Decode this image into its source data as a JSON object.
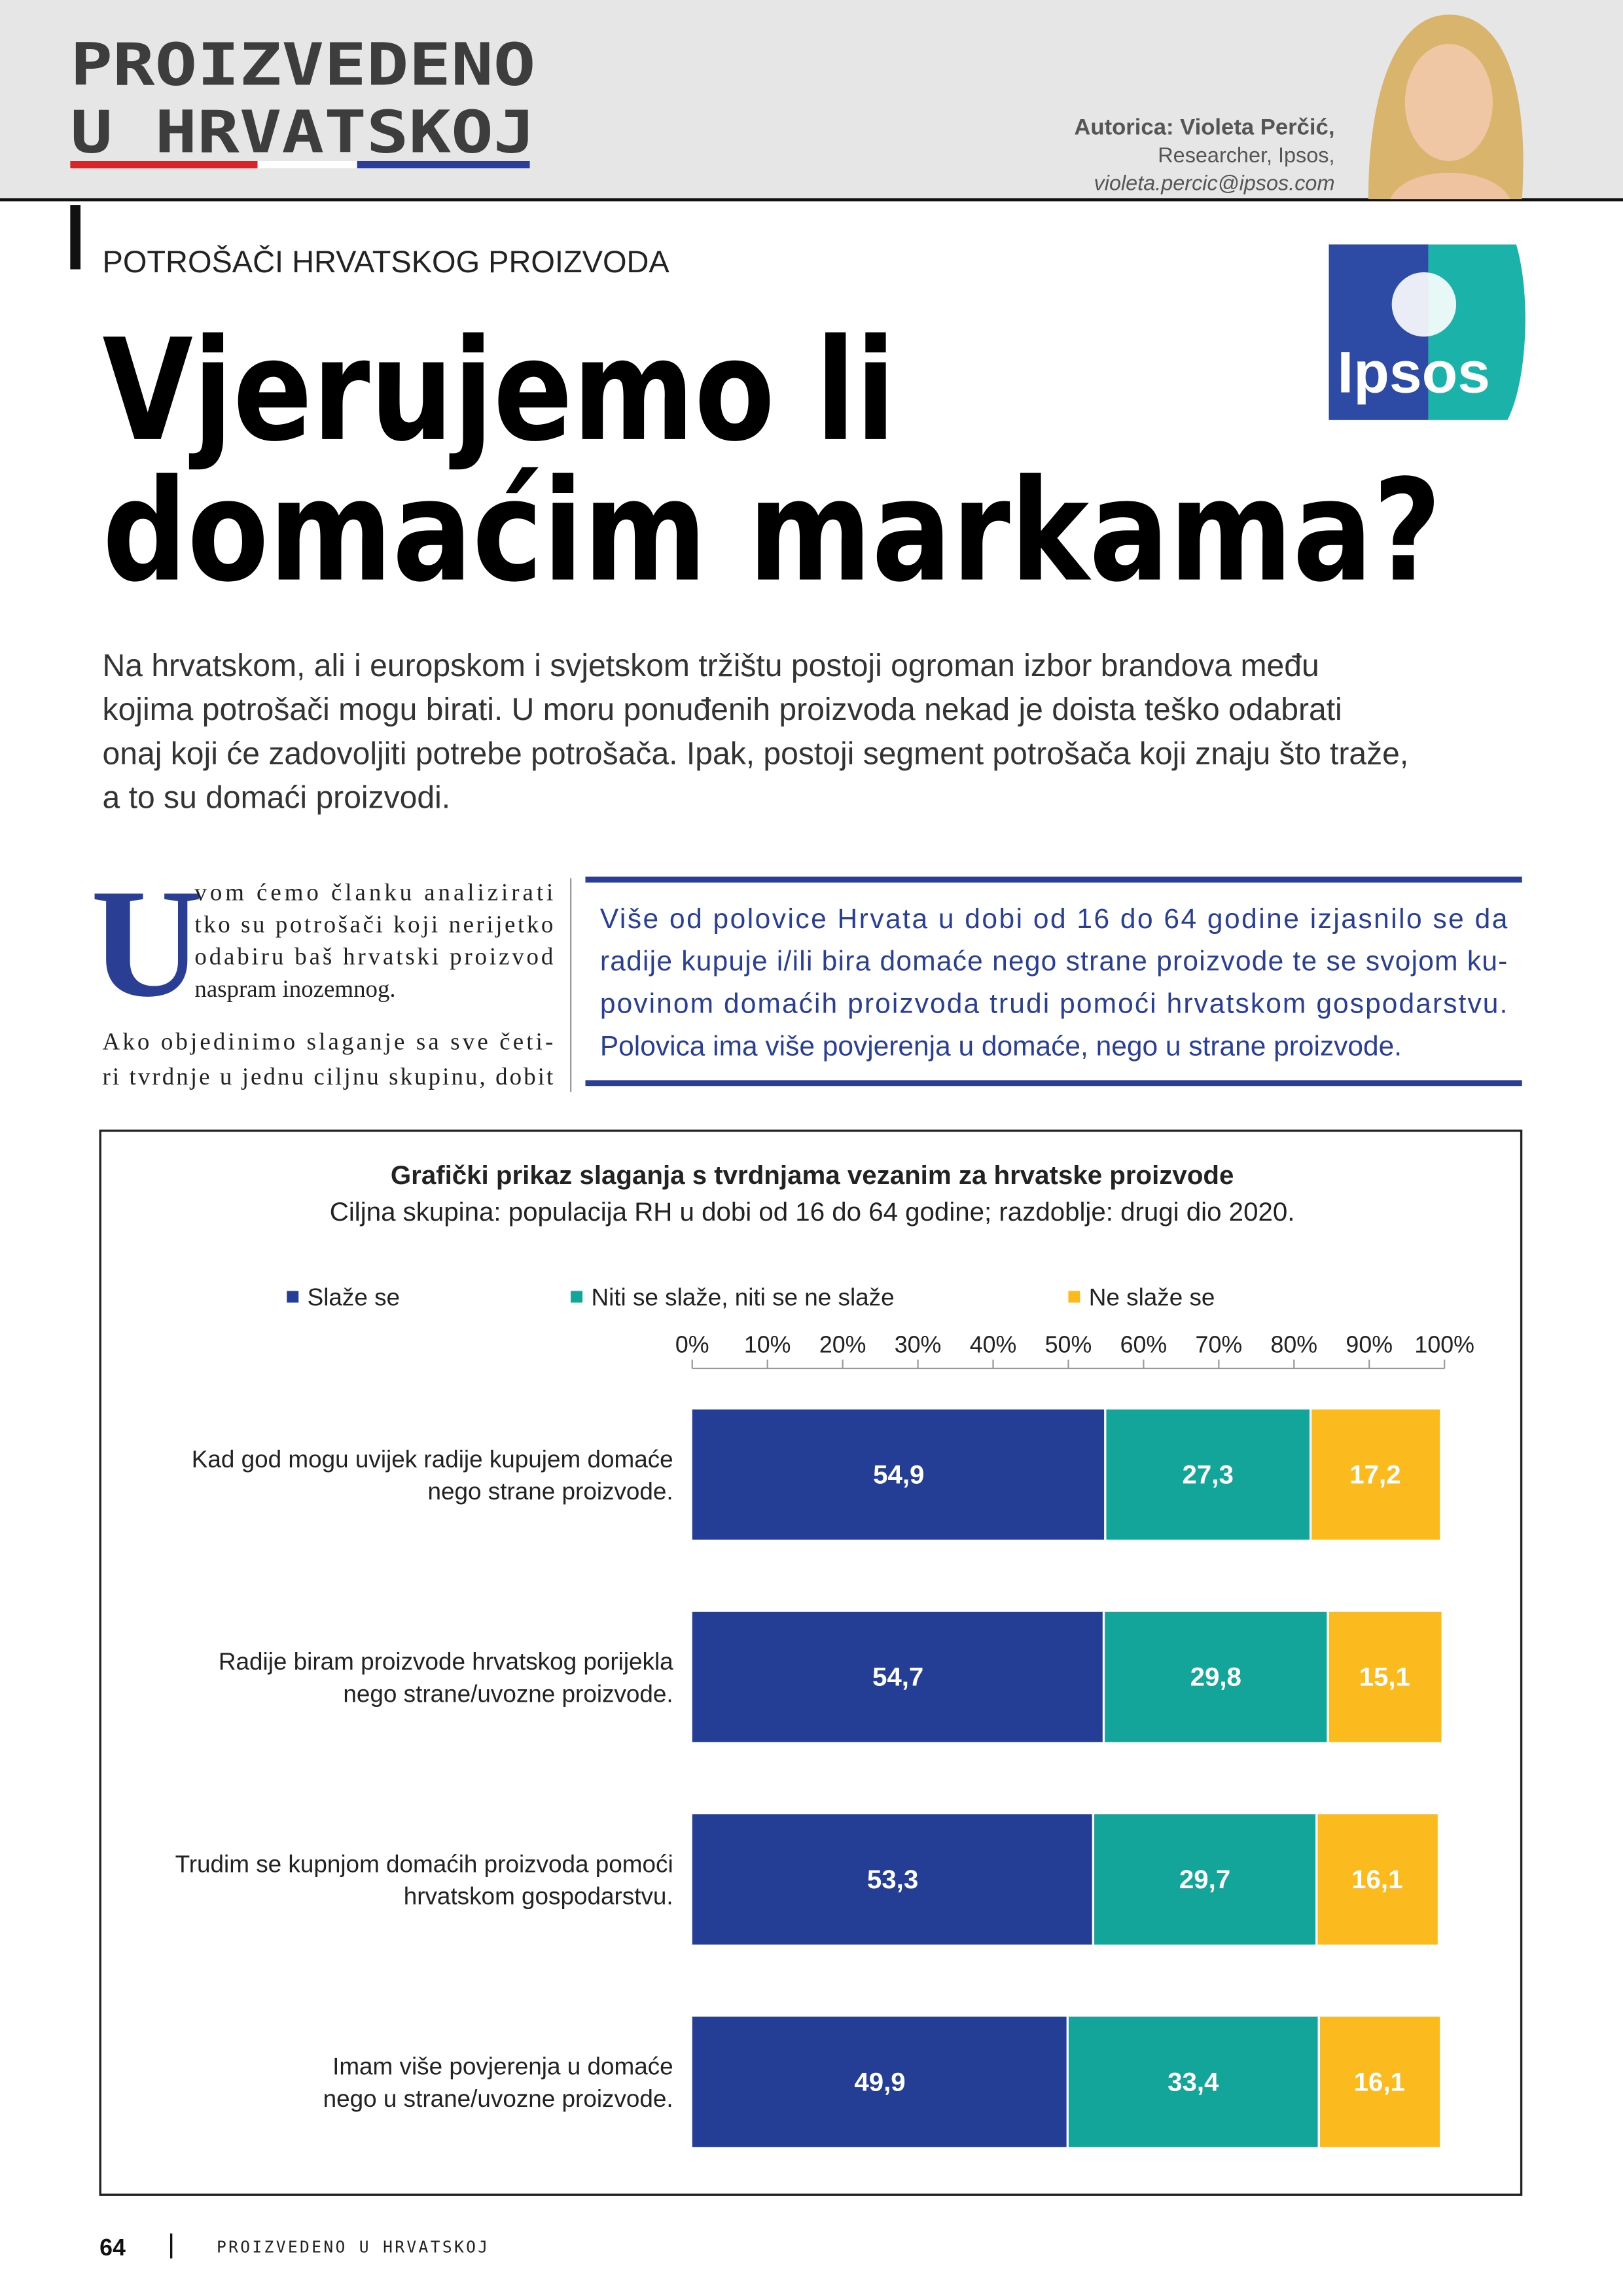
{
  "header": {
    "magazine_line1": "PROIZVEDENO",
    "magazine_line2": "U HRVATSKOJ",
    "author": "Autorica: Violeta Perčić,",
    "author_role": "Researcher, Ipsos,",
    "author_email": "violeta.percic@ipsos.com",
    "logo": "Ipsos"
  },
  "article": {
    "section": "POTROŠAČI HRVATSKOG PROIZVODA",
    "title": [
      "Vjerujemo li",
      "domaćim markama?"
    ],
    "lead": [
      "Na hrvatskom, ali i europskom i svjetskom tržištu postoji ogroman izbor brandova među",
      "kojima potrošači mogu birati. U moru ponuđenih proizvoda nekad je doista teško odabrati",
      "onaj koji će zadovoljiti potrebe potrošača. Ipak, postoji segment potrošača koji znaju što traže,",
      "a to su domaći proizvodi."
    ],
    "drop_cap": "U",
    "body": [
      "vom ćemo članku analizirati",
      "tko su potrošači koji nerijetko",
      "odabiru baš hrvatski proizvod",
      "naspram inozemnog.",
      "Ako objedinimo slaganje sa sve četi-",
      "ri tvrdnje u jednu ciljnu skupinu, dobit"
    ],
    "quote": [
      "Više od polovice Hrvata u dobi od 16 do 64 godine izjasnilo se da",
      "radije kupuje i/ili bira domaće nego strane proizvode te se svojom ku-",
      "povinom domaćih proizvoda trudi pomoći hrvatskom gospodarstvu.",
      "Polovica ima više povjerenja u domaće, nego u strane proizvode."
    ]
  },
  "chart_data": {
    "type": "bar",
    "orientation": "horizontal",
    "stacked": true,
    "title": "Grafički prikaz slaganja s tvrdnjama vezanim za hrvatske proizvode",
    "subtitle": "Ciljna skupina: populacija RH u dobi od 16 do 64 godine; razdoblje: drugi dio 2020.",
    "categories": [
      "Kad god mogu uvijek radije kupujem domaće nego strane proizvode.",
      "Radije biram proizvode hrvatskog porijekla nego strane/uvozne proizvode.",
      "Trudim se kupnjom domaćih proizvoda pomoći hrvatskom gospodarstvu.",
      "Imam više povjerenja u domaće nego u strane/uvozne proizvode."
    ],
    "series": [
      {
        "name": "Slaže se",
        "color": "#233e94",
        "values": [
          54.9,
          54.7,
          53.3,
          49.9
        ],
        "value_labels": [
          "54,9",
          "54,7",
          "53,3",
          "49,9"
        ]
      },
      {
        "name": "Niti se slaže, niti se ne slaže",
        "color": "#14a59a",
        "values": [
          27.3,
          29.8,
          29.7,
          33.4
        ],
        "value_labels": [
          "27,3",
          "29,8",
          "29,7",
          "33,4"
        ]
      },
      {
        "name": "Ne slaže se",
        "color": "#fbbb1f",
        "values": [
          17.2,
          15.1,
          16.1,
          16.1
        ],
        "value_labels": [
          "17,2",
          "15,1",
          "16,1",
          "16,1"
        ]
      }
    ],
    "xlim": [
      0,
      100
    ],
    "xticks": [
      {
        "value": 0,
        "label": "0%"
      },
      {
        "value": 10,
        "label": "10%"
      },
      {
        "value": 20,
        "label": "20%"
      },
      {
        "value": 30,
        "label": "30%"
      },
      {
        "value": 40,
        "label": "40%"
      },
      {
        "value": 50,
        "label": "50%"
      },
      {
        "value": 60,
        "label": "60%"
      },
      {
        "value": 70,
        "label": "70%"
      },
      {
        "value": 80,
        "label": "80%"
      },
      {
        "value": 90,
        "label": "90%"
      },
      {
        "value": 100,
        "label": "100%"
      }
    ],
    "grid": false,
    "legend": "top"
  },
  "footer": {
    "page": "64",
    "magazine": "PROIZVEDENO U HRVATSKOJ"
  }
}
